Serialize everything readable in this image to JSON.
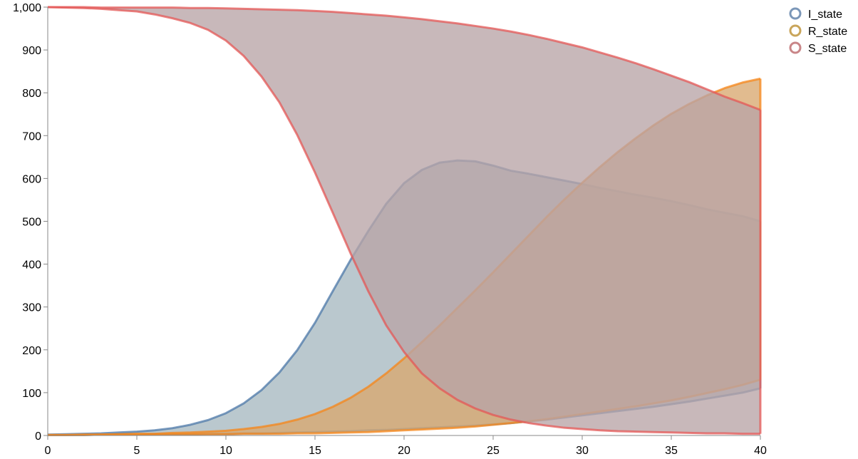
{
  "chart_data": {
    "type": "area",
    "title": "",
    "xlabel": "",
    "ylabel": "",
    "xlim": [
      0,
      40
    ],
    "ylim": [
      0,
      1000
    ],
    "x_ticks": [
      0,
      5,
      10,
      15,
      20,
      25,
      30,
      35,
      40
    ],
    "x_tick_labels": [
      "0",
      "5",
      "10",
      "15",
      "20",
      "25",
      "30",
      "35",
      "40"
    ],
    "y_ticks": [
      0,
      100,
      200,
      300,
      400,
      500,
      600,
      700,
      800,
      900,
      1000
    ],
    "y_tick_labels": [
      "0",
      "100",
      "200",
      "300",
      "400",
      "500",
      "600",
      "700",
      "800",
      "900",
      "1,000"
    ],
    "grid": false,
    "legend": "top-right",
    "x": [
      0,
      1,
      2,
      3,
      4,
      5,
      6,
      7,
      8,
      9,
      10,
      11,
      12,
      13,
      14,
      15,
      16,
      17,
      18,
      19,
      20,
      21,
      22,
      23,
      24,
      25,
      26,
      27,
      28,
      29,
      30,
      31,
      32,
      33,
      34,
      35,
      36,
      37,
      38,
      39,
      40
    ],
    "bands": [
      {
        "name": "I_state",
        "color": "#4c78a8",
        "fill": "#a6b8c0",
        "upper": [
          2,
          3,
          4,
          5,
          7,
          9,
          12,
          17,
          25,
          36,
          52,
          75,
          106,
          147,
          199,
          263,
          337,
          410,
          478,
          541,
          589,
          620,
          637,
          642,
          640,
          630,
          618,
          611,
          603,
          595,
          587,
          578,
          570,
          562,
          555,
          547,
          538,
          528,
          520,
          512,
          500
        ],
        "lower": [
          1,
          1,
          1,
          2,
          2,
          2,
          3,
          3,
          3,
          4,
          4,
          5,
          5,
          6,
          7,
          8,
          9,
          10,
          12,
          13,
          15,
          17,
          19,
          21,
          23,
          26,
          29,
          33,
          37,
          42,
          47,
          52,
          57,
          62,
          67,
          73,
          79,
          86,
          93,
          100,
          110
        ]
      },
      {
        "name": "R_state",
        "color": "#f58518",
        "fill": "#d8a870",
        "upper": [
          1,
          1,
          2,
          2,
          3,
          4,
          4,
          6,
          7,
          9,
          11,
          15,
          20,
          27,
          37,
          50,
          67,
          88,
          114,
          145,
          180,
          218,
          257,
          298,
          339,
          381,
          424,
          467,
          510,
          551,
          590,
          627,
          662,
          694,
          724,
          751,
          774,
          794,
          811,
          824,
          833
        ],
        "lower": [
          1,
          1,
          1,
          2,
          2,
          2,
          2,
          3,
          3,
          3,
          3,
          4,
          4,
          4,
          5,
          5,
          6,
          7,
          8,
          10,
          12,
          14,
          16,
          18,
          21,
          25,
          29,
          33,
          38,
          44,
          50,
          56,
          62,
          68,
          75,
          82,
          90,
          99,
          108,
          118,
          130
        ]
      },
      {
        "name": "S_state",
        "color": "#e45756",
        "fill": "#b8a4a6",
        "upper": [
          1000,
          1000,
          1000,
          999,
          999,
          999,
          999,
          999,
          998,
          998,
          997,
          996,
          995,
          994,
          993,
          991,
          989,
          986,
          983,
          980,
          976,
          972,
          967,
          962,
          956,
          950,
          943,
          935,
          926,
          916,
          906,
          894,
          882,
          869,
          855,
          840,
          825,
          808,
          791,
          776,
          760
        ],
        "lower": [
          1000,
          999,
          998,
          996,
          993,
          990,
          983,
          974,
          963,
          947,
          922,
          886,
          838,
          778,
          702,
          614,
          520,
          425,
          336,
          257,
          195,
          145,
          110,
          83,
          63,
          48,
          37,
          29,
          23,
          18,
          15,
          12,
          10,
          9,
          8,
          7,
          6,
          5,
          5,
          4,
          4
        ]
      }
    ],
    "legend_marker_colors": [
      "#7b97b8",
      "#c9a55a",
      "#c98688"
    ]
  }
}
